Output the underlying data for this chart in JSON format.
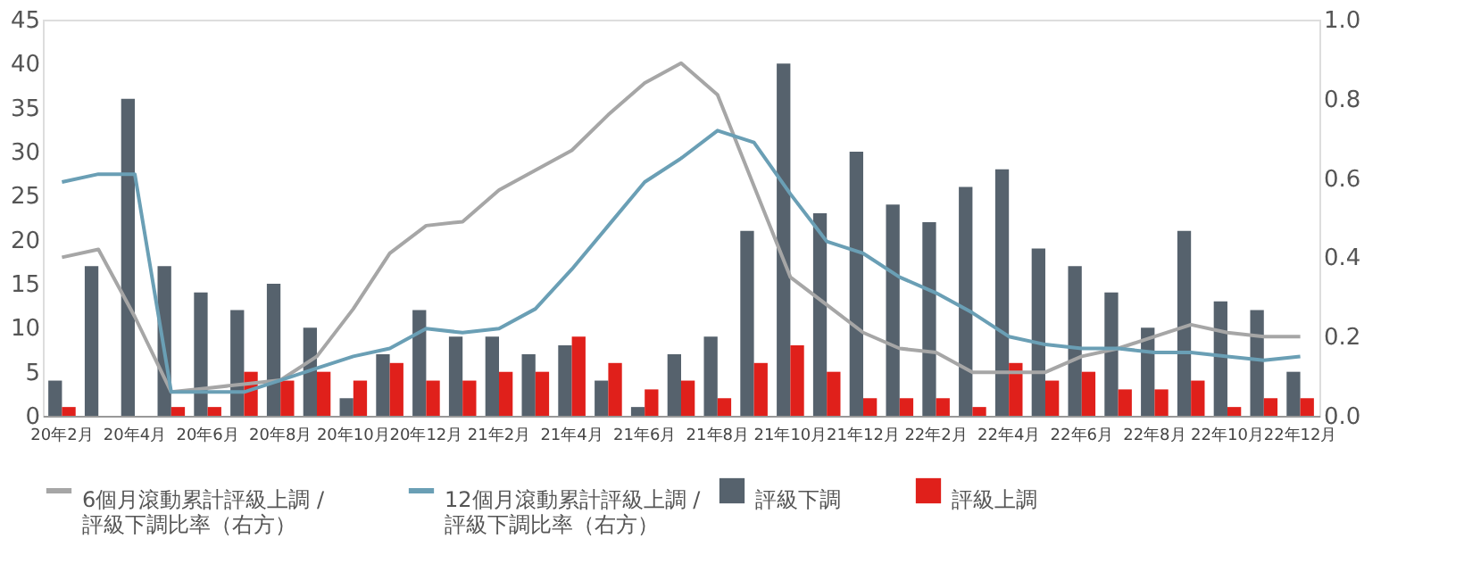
{
  "chart_data": {
    "type": "bar",
    "categories": [
      "20年2月",
      null,
      "20年4月",
      null,
      "20年6月",
      null,
      "20年8月",
      null,
      "20年10月",
      null,
      "20年12月",
      null,
      "21年2月",
      null,
      "21年4月",
      null,
      "21年6月",
      null,
      "21年8月",
      null,
      "21年10月",
      null,
      "21年12月",
      null,
      "22年2月",
      null,
      "22年4月",
      null,
      "22年6月",
      null,
      "22年8月",
      null,
      "22年10月",
      null,
      "22年12月"
    ],
    "ylim": [
      0,
      45
    ],
    "yticks": [
      0,
      5,
      10,
      15,
      20,
      25,
      30,
      35,
      40,
      45
    ],
    "y2lim": [
      0,
      1
    ],
    "y2ticks": [
      {
        "value": 0,
        "label": "0.0"
      },
      {
        "value": 0.2,
        "label": "0.2"
      },
      {
        "value": 0.4,
        "label": "0.4"
      },
      {
        "value": 0.6,
        "label": "0.6"
      },
      {
        "value": 0.8,
        "label": "0.8"
      },
      {
        "value": 1,
        "label": "1.0"
      }
    ],
    "legend": "bottom",
    "series": [
      {
        "name": "評級下調",
        "color": "#56626d",
        "values": [
          4,
          17,
          36,
          17,
          14,
          12,
          15,
          10,
          2,
          7,
          12,
          9,
          9,
          7,
          8,
          4,
          1,
          7,
          9,
          21,
          40,
          23,
          30,
          24,
          22,
          26,
          28,
          19,
          17,
          14,
          10,
          21,
          13,
          12,
          5
        ]
      },
      {
        "name": "評級上調",
        "color": "#e0201b",
        "values": [
          1,
          0,
          0,
          1,
          1,
          5,
          4,
          5,
          4,
          6,
          4,
          4,
          5,
          5,
          9,
          6,
          3,
          4,
          2,
          6,
          8,
          5,
          2,
          2,
          2,
          1,
          6,
          4,
          5,
          3,
          3,
          4,
          1,
          2,
          2
        ]
      },
      {
        "name": "6個月滾動累計評級上調 / 評級下調比率（右方）",
        "type": "line",
        "axis": "y2",
        "color": "#a6a6a6",
        "values": [
          0.4,
          0.42,
          0.25,
          0.06,
          0.07,
          0.08,
          0.09,
          0.15,
          0.27,
          0.41,
          0.48,
          0.49,
          0.57,
          0.62,
          0.67,
          0.76,
          0.84,
          0.89,
          0.81,
          0.58,
          0.35,
          0.28,
          0.21,
          0.17,
          0.16,
          0.11,
          0.11,
          0.11,
          0.15,
          0.17,
          0.2,
          0.23,
          0.21,
          0.2,
          0.2
        ]
      },
      {
        "name": "12個月滾動累計評級上調 / 評級下調比率（右方）",
        "type": "line",
        "axis": "y2",
        "color": "#6a9fb5",
        "values": [
          0.59,
          0.61,
          0.61,
          0.06,
          0.06,
          0.06,
          0.09,
          0.12,
          0.15,
          0.17,
          0.22,
          0.21,
          0.22,
          0.27,
          0.37,
          0.48,
          0.59,
          0.65,
          0.72,
          0.69,
          0.56,
          0.44,
          0.41,
          0.35,
          0.31,
          0.26,
          0.2,
          0.18,
          0.17,
          0.17,
          0.16,
          0.16,
          0.15,
          0.14,
          0.15
        ]
      }
    ]
  }
}
